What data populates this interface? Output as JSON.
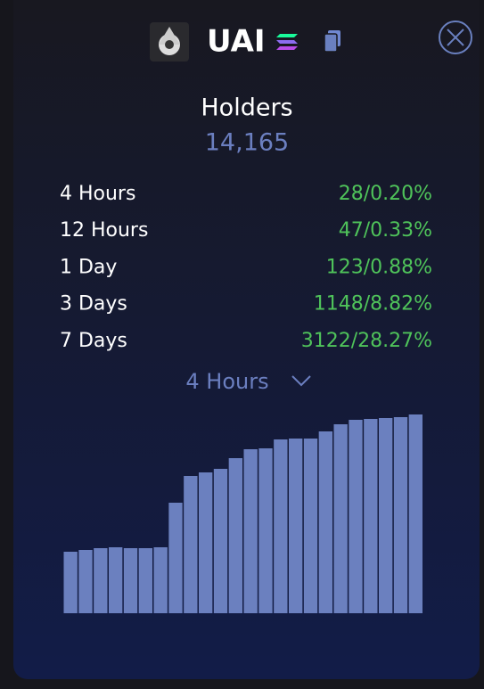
{
  "header": {
    "title": "UAI"
  },
  "holders": {
    "label": "Holders",
    "value": "14,165"
  },
  "rows": [
    {
      "label": "4 Hours",
      "value": "28/0.20%"
    },
    {
      "label": "12 Hours",
      "value": "47/0.33%"
    },
    {
      "label": "1 Day",
      "value": "123/0.88%"
    },
    {
      "label": "3 Days",
      "value": "1148/8.82%"
    },
    {
      "label": "7 Days",
      "value": "3122/28.27%"
    }
  ],
  "dropdown": {
    "selected": "4 Hours"
  },
  "chart_data": {
    "type": "bar",
    "color": "#6b80bf",
    "ylim": [
      0,
      230
    ],
    "values": [
      69,
      71,
      73,
      74,
      73,
      73,
      74,
      124,
      154,
      158,
      162,
      174,
      184,
      185,
      195,
      196,
      196,
      204,
      212,
      217,
      218,
      219,
      220,
      223
    ]
  }
}
